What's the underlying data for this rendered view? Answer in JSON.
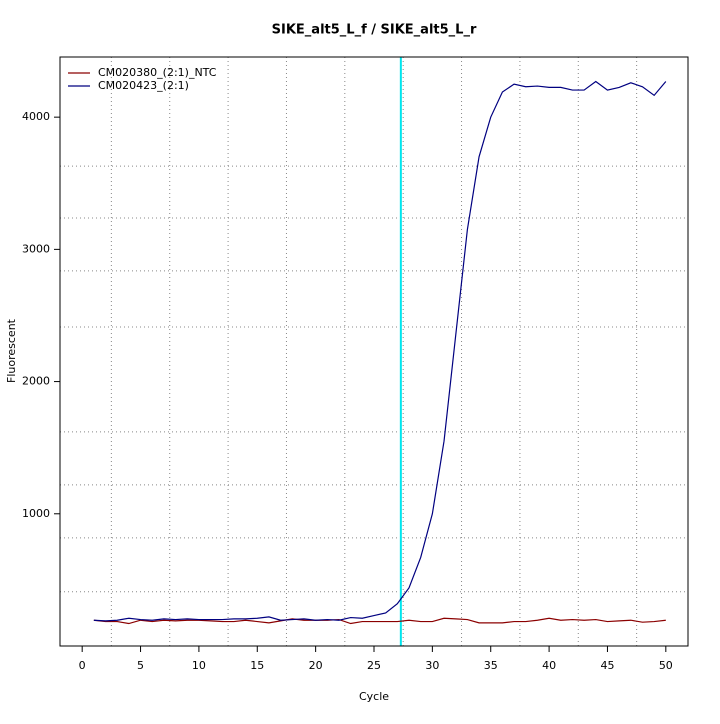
{
  "chart_data": {
    "type": "line",
    "title": "SIKE_alt5_L_f / SIKE_alt5_L_r",
    "x_label": "Cycle",
    "y_label": "Fluorescent",
    "x": [
      1,
      2,
      3,
      4,
      5,
      6,
      7,
      8,
      9,
      10,
      11,
      12,
      13,
      14,
      15,
      16,
      17,
      18,
      19,
      20,
      21,
      22,
      23,
      24,
      25,
      26,
      27,
      28,
      29,
      30,
      31,
      32,
      33,
      34,
      35,
      36,
      37,
      38,
      39,
      40,
      41,
      42,
      43,
      44,
      45,
      46,
      47,
      48,
      49,
      50
    ],
    "series": [
      {
        "name": "CM020380_(2:1)_NTC",
        "color": "#8b0000",
        "values": [
          195,
          185,
          185,
          170,
          195,
          185,
          195,
          190,
          195,
          195,
          190,
          185,
          185,
          195,
          185,
          175,
          190,
          205,
          195,
          195,
          195,
          200,
          170,
          185,
          185,
          185,
          185,
          195,
          185,
          185,
          210,
          205,
          200,
          175,
          175,
          175,
          185,
          185,
          195,
          210,
          195,
          200,
          195,
          200,
          185,
          190,
          195,
          180,
          185,
          195
        ]
      },
      {
        "name": "CM020423_(2:1)",
        "color": "#000080",
        "values": [
          195,
          190,
          195,
          210,
          200,
          195,
          205,
          200,
          205,
          200,
          200,
          200,
          205,
          205,
          210,
          220,
          195,
          200,
          205,
          195,
          200,
          195,
          215,
          210,
          230,
          250,
          320,
          440,
          670,
          1000,
          1550,
          2350,
          3150,
          3700,
          4000,
          4190,
          4250,
          4230,
          4235,
          4225,
          4225,
          4205,
          4205,
          4270,
          4205,
          4225,
          4260,
          4230,
          4165,
          4270
        ]
      }
    ],
    "vline": 27.3,
    "vline_color": "#00e5ee",
    "xlim": [
      -1.9,
      51.9
    ],
    "ylim": [
      0,
      4455
    ],
    "xticks": [
      0,
      5,
      10,
      15,
      20,
      25,
      30,
      35,
      40,
      45,
      50
    ],
    "yticks": [
      1000,
      2000,
      3000,
      4000
    ],
    "x_grid": [
      2.5,
      7.5,
      12.5,
      17.5,
      22.5,
      27.5,
      32.5,
      37.5,
      42.5,
      47.5
    ],
    "y_grid": [
      410,
      818,
      1219,
      1620,
      2413,
      2837,
      3237,
      3630
    ],
    "legend": "top-left"
  }
}
